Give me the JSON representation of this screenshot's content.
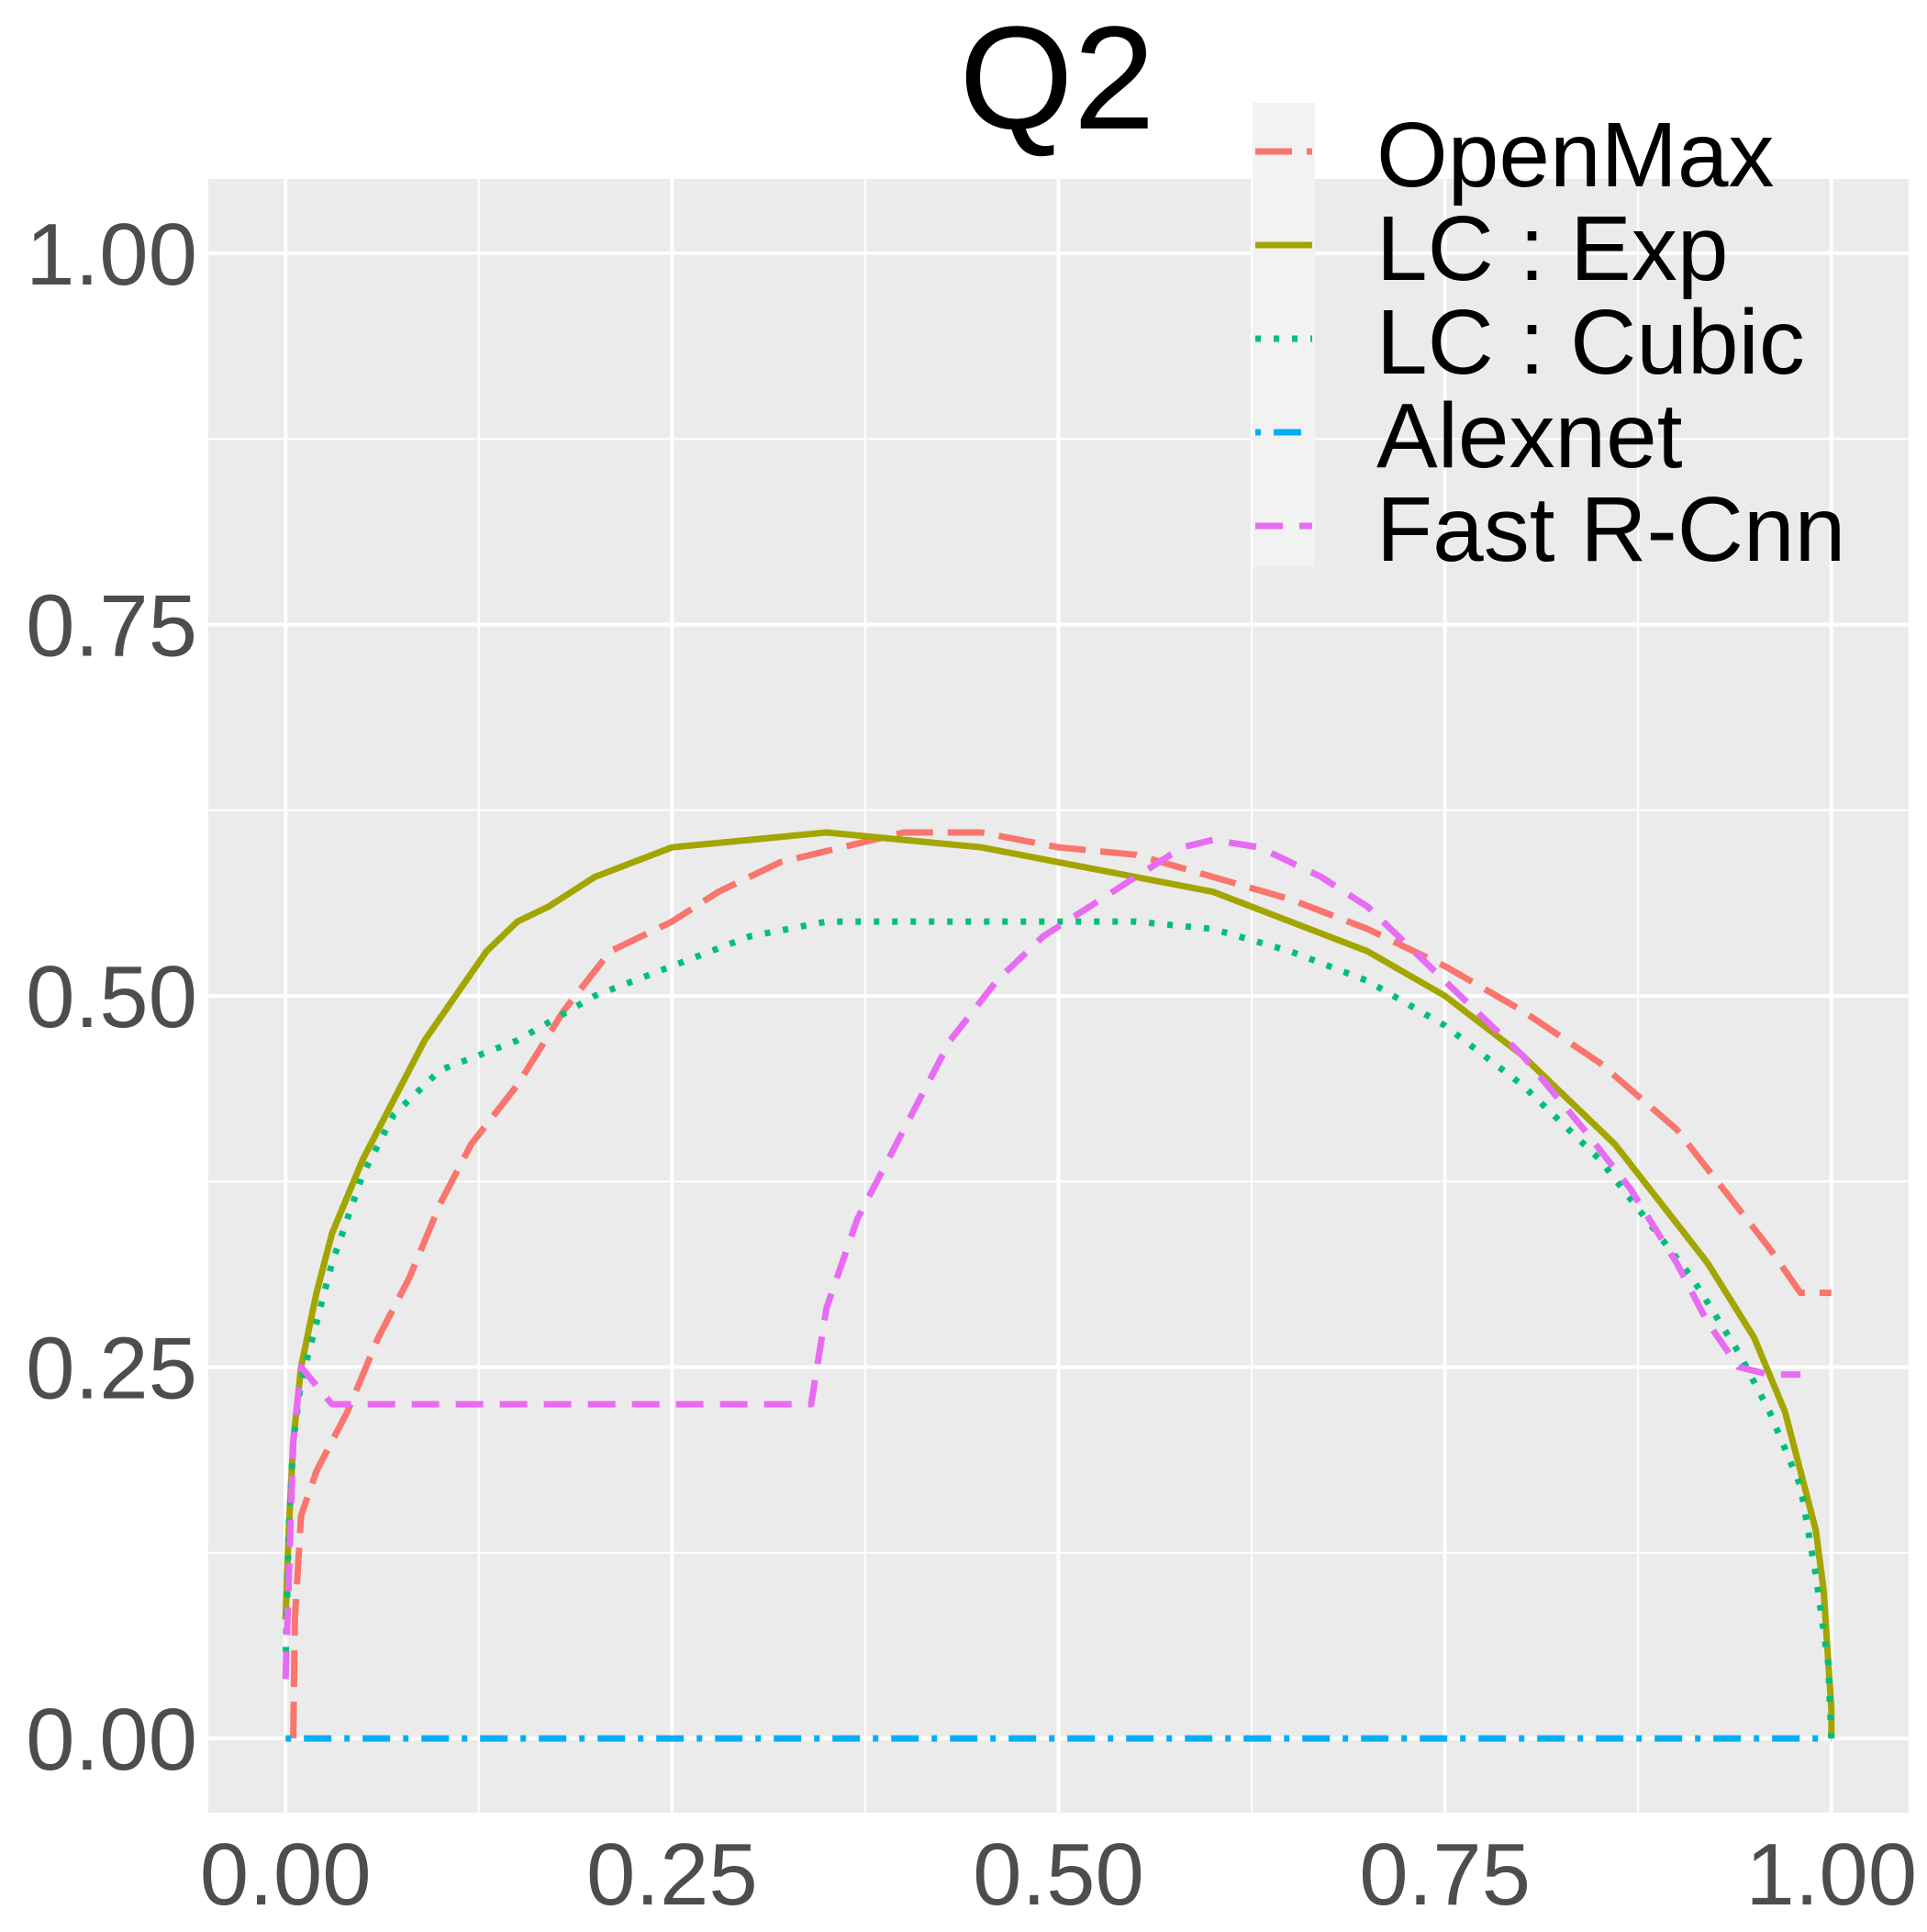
{
  "chart_data": {
    "type": "line",
    "title": "Q2",
    "xlabel": "",
    "ylabel": "",
    "xlim": [
      -0.05,
      1.05
    ],
    "ylim": [
      -0.05,
      1.05
    ],
    "x_ticks": [
      0.0,
      0.25,
      0.5,
      0.75,
      1.0
    ],
    "x_tick_labels": [
      "0.00",
      "0.25",
      "0.50",
      "0.75",
      "1.00"
    ],
    "y_ticks": [
      0.0,
      0.25,
      0.5,
      0.75,
      1.0
    ],
    "y_tick_labels": [
      "0.00",
      "0.25",
      "0.50",
      "0.75",
      "1.00"
    ],
    "grid": true,
    "legend_position": "top-right",
    "background_color": "#EBEBEB",
    "series": [
      {
        "name": "OpenMax",
        "color": "#F8766D",
        "dash": "longdash",
        "points": [
          [
            0.005,
            0.0
          ],
          [
            0.006,
            0.08
          ],
          [
            0.01,
            0.15
          ],
          [
            0.02,
            0.18
          ],
          [
            0.04,
            0.22
          ],
          [
            0.06,
            0.27
          ],
          [
            0.08,
            0.31
          ],
          [
            0.1,
            0.36
          ],
          [
            0.12,
            0.4
          ],
          [
            0.15,
            0.44
          ],
          [
            0.18,
            0.49
          ],
          [
            0.21,
            0.53
          ],
          [
            0.25,
            0.55
          ],
          [
            0.28,
            0.57
          ],
          [
            0.32,
            0.59
          ],
          [
            0.36,
            0.6
          ],
          [
            0.4,
            0.61
          ],
          [
            0.45,
            0.61
          ],
          [
            0.5,
            0.6
          ],
          [
            0.55,
            0.595
          ],
          [
            0.6,
            0.58
          ],
          [
            0.65,
            0.565
          ],
          [
            0.7,
            0.545
          ],
          [
            0.75,
            0.52
          ],
          [
            0.8,
            0.49
          ],
          [
            0.85,
            0.455
          ],
          [
            0.9,
            0.41
          ],
          [
            0.93,
            0.37
          ],
          [
            0.96,
            0.33
          ],
          [
            0.98,
            0.3
          ],
          [
            1.0,
            0.3
          ]
        ]
      },
      {
        "name": "LC : Exp",
        "color": "#A3A500",
        "dash": "solid",
        "points": [
          [
            1.0,
            0.0
          ],
          [
            1.0,
            0.02
          ],
          [
            0.995,
            0.1
          ],
          [
            0.99,
            0.14
          ],
          [
            0.98,
            0.18
          ],
          [
            0.97,
            0.22
          ],
          [
            0.95,
            0.27
          ],
          [
            0.92,
            0.32
          ],
          [
            0.89,
            0.36
          ],
          [
            0.86,
            0.4
          ],
          [
            0.83,
            0.43
          ],
          [
            0.8,
            0.46
          ],
          [
            0.75,
            0.5
          ],
          [
            0.7,
            0.53
          ],
          [
            0.65,
            0.55
          ],
          [
            0.6,
            0.57
          ],
          [
            0.55,
            0.58
          ],
          [
            0.5,
            0.59
          ],
          [
            0.45,
            0.6
          ],
          [
            0.4,
            0.605
          ],
          [
            0.35,
            0.61
          ],
          [
            0.3,
            0.605
          ],
          [
            0.25,
            0.6
          ],
          [
            0.2,
            0.58
          ],
          [
            0.17,
            0.56
          ],
          [
            0.15,
            0.55
          ],
          [
            0.13,
            0.53
          ],
          [
            0.11,
            0.5
          ],
          [
            0.09,
            0.47
          ],
          [
            0.07,
            0.43
          ],
          [
            0.05,
            0.39
          ],
          [
            0.03,
            0.34
          ],
          [
            0.02,
            0.3
          ],
          [
            0.01,
            0.25
          ],
          [
            0.005,
            0.2
          ],
          [
            0.002,
            0.14
          ],
          [
            0.0,
            0.08
          ]
        ]
      },
      {
        "name": "LC : Cubic",
        "color": "#00BF7D",
        "dash": "dotted",
        "points": [
          [
            1.0,
            0.0
          ],
          [
            0.998,
            0.05
          ],
          [
            0.99,
            0.11
          ],
          [
            0.98,
            0.17
          ],
          [
            0.96,
            0.22
          ],
          [
            0.94,
            0.26
          ],
          [
            0.91,
            0.31
          ],
          [
            0.88,
            0.35
          ],
          [
            0.85,
            0.39
          ],
          [
            0.8,
            0.44
          ],
          [
            0.75,
            0.48
          ],
          [
            0.7,
            0.51
          ],
          [
            0.65,
            0.53
          ],
          [
            0.6,
            0.545
          ],
          [
            0.55,
            0.55
          ],
          [
            0.5,
            0.55
          ],
          [
            0.45,
            0.55
          ],
          [
            0.4,
            0.55
          ],
          [
            0.35,
            0.55
          ],
          [
            0.3,
            0.54
          ],
          [
            0.25,
            0.52
          ],
          [
            0.2,
            0.5
          ],
          [
            0.15,
            0.47
          ],
          [
            0.1,
            0.45
          ],
          [
            0.07,
            0.42
          ],
          [
            0.05,
            0.38
          ],
          [
            0.03,
            0.32
          ],
          [
            0.02,
            0.28
          ],
          [
            0.01,
            0.24
          ],
          [
            0.005,
            0.2
          ],
          [
            0.002,
            0.14
          ],
          [
            0.0,
            0.05
          ]
        ]
      },
      {
        "name": "Alexnet",
        "color": "#00B0F6",
        "dash": "dotdash",
        "points": [
          [
            0.0,
            0.0
          ],
          [
            1.0,
            0.0
          ]
        ]
      },
      {
        "name": "Fast R-Cnn",
        "color": "#E76BF3",
        "dash": "dashed",
        "points": [
          [
            0.0,
            0.04
          ],
          [
            0.005,
            0.2
          ],
          [
            0.01,
            0.25
          ],
          [
            0.03,
            0.225
          ],
          [
            0.34,
            0.225
          ],
          [
            0.35,
            0.29
          ],
          [
            0.37,
            0.35
          ],
          [
            0.4,
            0.41
          ],
          [
            0.43,
            0.47
          ],
          [
            0.46,
            0.51
          ],
          [
            0.49,
            0.54
          ],
          [
            0.52,
            0.56
          ],
          [
            0.55,
            0.58
          ],
          [
            0.58,
            0.6
          ],
          [
            0.6,
            0.605
          ],
          [
            0.63,
            0.6
          ],
          [
            0.67,
            0.58
          ],
          [
            0.7,
            0.56
          ],
          [
            0.73,
            0.53
          ],
          [
            0.76,
            0.5
          ],
          [
            0.8,
            0.46
          ],
          [
            0.84,
            0.41
          ],
          [
            0.87,
            0.37
          ],
          [
            0.9,
            0.32
          ],
          [
            0.92,
            0.28
          ],
          [
            0.94,
            0.25
          ],
          [
            0.96,
            0.245
          ],
          [
            0.98,
            0.245
          ]
        ]
      }
    ]
  }
}
